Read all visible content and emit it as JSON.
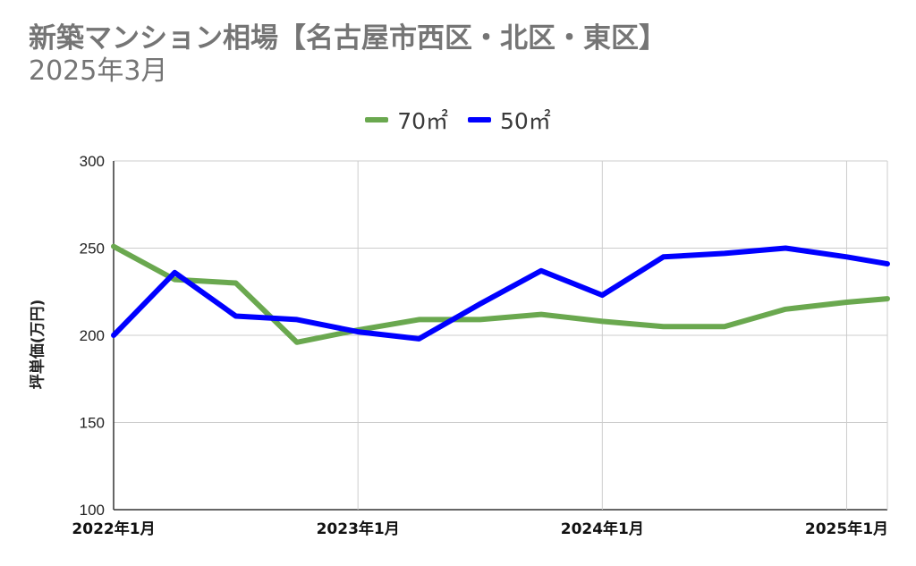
{
  "chart_data": {
    "type": "line",
    "title": "新築マンション相場【名古屋市西区・北区・東区】",
    "subtitle": "2025年3月",
    "ylabel": "坪単価(万円)",
    "xlabel": "",
    "ylim": [
      100,
      300
    ],
    "yticks": [
      100,
      150,
      200,
      250,
      300
    ],
    "x_tick_labels": [
      "2022年1月",
      "2023年1月",
      "2024年1月",
      "2025年1月"
    ],
    "x": [
      "2022-01",
      "2022-04",
      "2022-07",
      "2022-10",
      "2023-01",
      "2023-04",
      "2023-07",
      "2023-10",
      "2024-01",
      "2024-04",
      "2024-07",
      "2024-10",
      "2025-01",
      "2025-03"
    ],
    "series": [
      {
        "name": "70㎡",
        "color": "#6aa84f",
        "values": [
          251,
          232,
          230,
          196,
          203,
          209,
          209,
          212,
          208,
          205,
          205,
          215,
          219,
          221
        ]
      },
      {
        "name": "50㎡",
        "color": "#0000ff",
        "values": [
          200,
          236,
          211,
          209,
          202,
          198,
          218,
          237,
          223,
          245,
          247,
          250,
          245,
          241
        ]
      }
    ],
    "grid": true,
    "legend": "top-center"
  }
}
